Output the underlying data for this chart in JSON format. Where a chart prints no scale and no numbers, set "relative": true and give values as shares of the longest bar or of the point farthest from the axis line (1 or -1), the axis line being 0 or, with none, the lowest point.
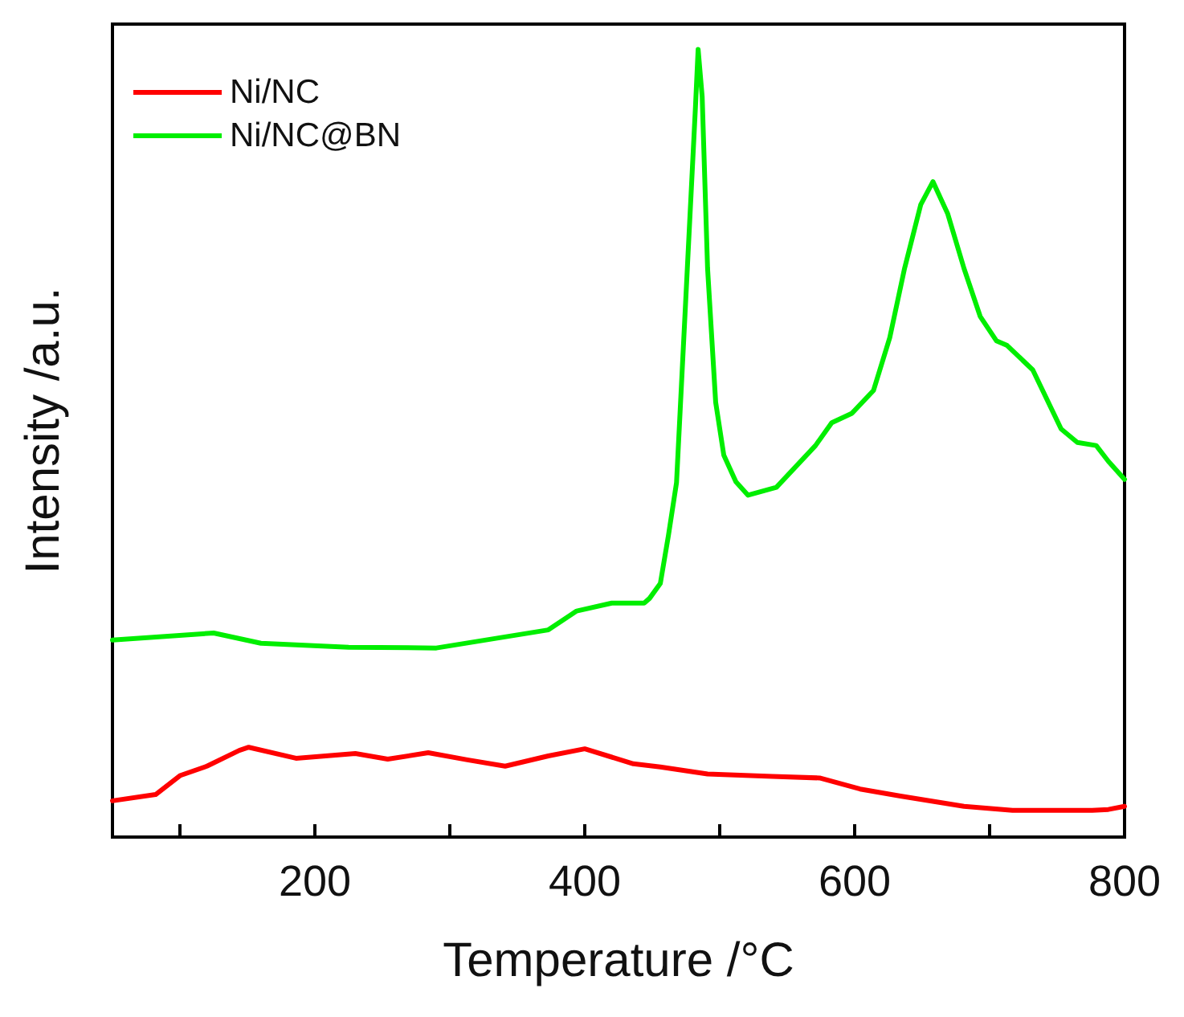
{
  "chart_data": {
    "type": "line",
    "xlabel": "Temperature /°C",
    "ylabel": "Intensity /a.u.",
    "relative": true,
    "legend": "top left",
    "grid": false,
    "marker": "none",
    "line_style": "solid",
    "xlim": [
      50,
      800
    ],
    "xticks": [
      {
        "value": 100,
        "label": null
      },
      200,
      {
        "value": 300,
        "label": null
      },
      400,
      {
        "value": 500,
        "label": null
      },
      600,
      {
        "value": 700,
        "label": null
      },
      800
    ],
    "series": [
      {
        "name": "Ni/NC",
        "color": "#ff0000",
        "x": [
          50,
          82,
          100,
          120,
          144,
          151,
          186,
          230,
          254,
          284,
          313,
          341,
          373,
          400,
          436,
          456,
          491,
          539,
          574,
          604,
          634,
          681,
          717,
          776,
          788,
          800
        ],
        "values": [
          0.046,
          0.054,
          0.078,
          0.09,
          0.11,
          0.114,
          0.1,
          0.106,
          0.099,
          0.107,
          0.098,
          0.09,
          0.103,
          0.112,
          0.093,
          0.089,
          0.08,
          0.077,
          0.075,
          0.061,
          0.052,
          0.039,
          0.034,
          0.034,
          0.035,
          0.039
        ]
      },
      {
        "name": "Ni/NC@BN",
        "color": "#00ee00",
        "x": [
          50,
          125,
          160,
          225,
          290,
          337,
          373,
          394,
          420,
          444,
          448,
          456,
          462,
          468,
          476,
          482,
          484,
          487,
          491,
          497,
          503,
          512,
          521,
          542,
          571,
          583,
          598,
          614,
          626,
          637,
          649,
          658,
          669,
          681,
          693,
          705,
          713,
          732,
          753,
          765,
          779,
          788,
          800
        ],
        "values": [
          0.25,
          0.259,
          0.246,
          0.241,
          0.24,
          0.253,
          0.263,
          0.287,
          0.297,
          0.297,
          0.303,
          0.322,
          0.383,
          0.45,
          0.722,
          0.926,
          1.0,
          0.94,
          0.722,
          0.552,
          0.485,
          0.451,
          0.434,
          0.444,
          0.497,
          0.526,
          0.538,
          0.567,
          0.634,
          0.722,
          0.803,
          0.832,
          0.791,
          0.722,
          0.661,
          0.63,
          0.624,
          0.593,
          0.518,
          0.501,
          0.497,
          0.477,
          0.454
        ]
      }
    ]
  }
}
